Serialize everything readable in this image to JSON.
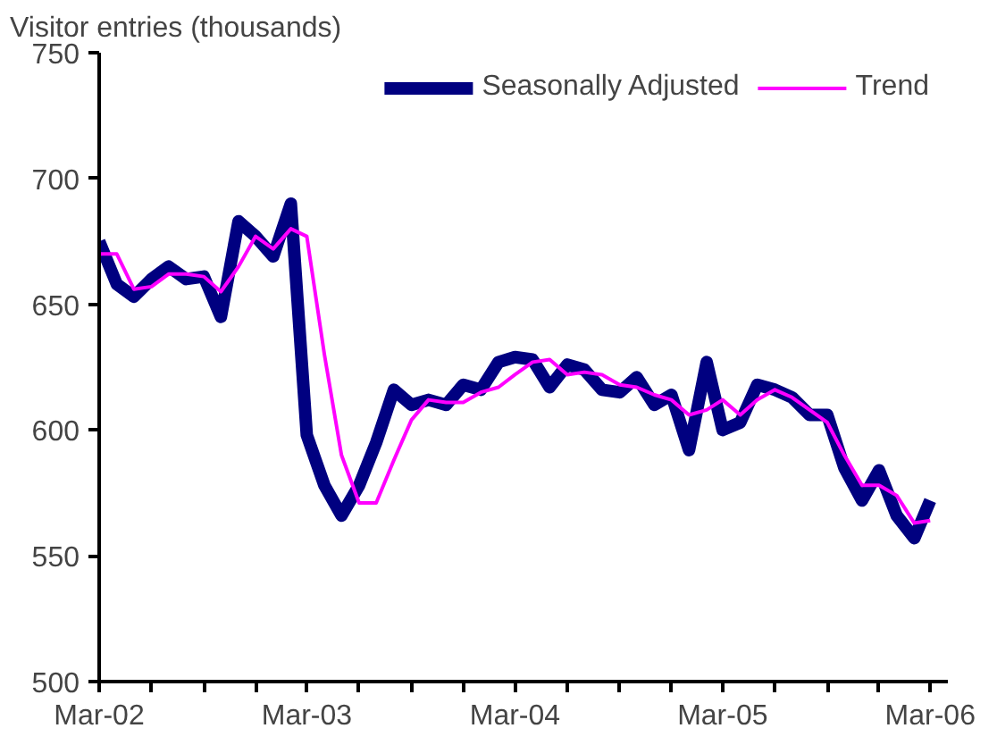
{
  "chart_data": {
    "type": "line",
    "ylabel": "Visitor entries (thousands)",
    "x": [
      "2002-03",
      "2002-04",
      "2002-05",
      "2002-06",
      "2002-07",
      "2002-08",
      "2002-09",
      "2002-10",
      "2002-11",
      "2002-12",
      "2003-01",
      "2003-02",
      "2003-03",
      "2003-04",
      "2003-05",
      "2003-06",
      "2003-07",
      "2003-08",
      "2003-09",
      "2003-10",
      "2003-11",
      "2003-12",
      "2004-01",
      "2004-02",
      "2004-03",
      "2004-04",
      "2004-05",
      "2004-06",
      "2004-07",
      "2004-08",
      "2004-09",
      "2004-10",
      "2004-11",
      "2004-12",
      "2005-01",
      "2005-02",
      "2005-03",
      "2005-04",
      "2005-05",
      "2005-06",
      "2005-07",
      "2005-08",
      "2005-09",
      "2005-10",
      "2005-11",
      "2005-12",
      "2006-01",
      "2006-02",
      "2006-03"
    ],
    "series": [
      {
        "name": "Seasonally Adjusted",
        "color": "#000080",
        "values": [
          675,
          658,
          653,
          660,
          665,
          660,
          661,
          645,
          683,
          677,
          669,
          690,
          598,
          578,
          566,
          578,
          595,
          616,
          610,
          612,
          610,
          618,
          616,
          627,
          629,
          628,
          617,
          626,
          624,
          616,
          615,
          621,
          610,
          614,
          592,
          627,
          600,
          603,
          618,
          616,
          613,
          606,
          606,
          585,
          572,
          584,
          566,
          557,
          572
        ]
      },
      {
        "name": "Trend",
        "color": "#ff00ff",
        "values": [
          670,
          670,
          656,
          657,
          662,
          662,
          661,
          655,
          665,
          677,
          672,
          680,
          677,
          630,
          590,
          571,
          571,
          588,
          604,
          612,
          611,
          611,
          615,
          617,
          622,
          627,
          628,
          622,
          623,
          622,
          618,
          617,
          614,
          612,
          606,
          608,
          612,
          606,
          612,
          616,
          613,
          608,
          603,
          590,
          578,
          578,
          574,
          563,
          564
        ]
      }
    ],
    "ylim": [
      500,
      750
    ],
    "yticks": [
      500,
      550,
      600,
      650,
      700,
      750
    ],
    "xlim": [
      "2002-03",
      "2006-04"
    ],
    "xticks": [
      {
        "value": "2002-03",
        "label": "Mar-02"
      },
      {
        "value": "2002-06",
        "label": null
      },
      {
        "value": "2002-09",
        "label": null
      },
      {
        "value": "2002-12",
        "label": null
      },
      {
        "value": "2003-03",
        "label": "Mar-03"
      },
      {
        "value": "2003-06",
        "label": null
      },
      {
        "value": "2003-09",
        "label": null
      },
      {
        "value": "2003-12",
        "label": null
      },
      {
        "value": "2004-03",
        "label": "Mar-04"
      },
      {
        "value": "2004-06",
        "label": null
      },
      {
        "value": "2004-09",
        "label": null
      },
      {
        "value": "2004-12",
        "label": null
      },
      {
        "value": "2005-03",
        "label": "Mar-05"
      },
      {
        "value": "2005-06",
        "label": null
      },
      {
        "value": "2005-09",
        "label": null
      },
      {
        "value": "2005-12",
        "label": null
      },
      {
        "value": "2006-03",
        "label": "Mar-06"
      }
    ],
    "grid": false,
    "legend": "top right"
  }
}
